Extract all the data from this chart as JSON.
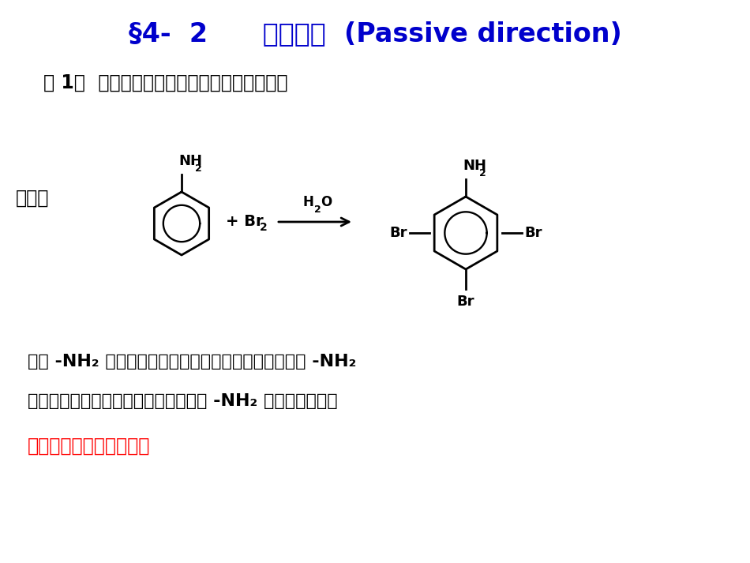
{
  "bg_color": "#FFFFFF",
  "title_color": "#0000CC",
  "text_color_black": "#000000",
  "text_color_red": "#FF0000",
  "title": "§4-  2      钝化导向  (Passive direction)",
  "example_line": "例 1：  设计对溴苯胺和邻溴苯胺的合成路线。",
  "analysis_label": "分析：",
  "body1a": "要使 -NH",
  "body1b": " 的邻位或对位只进入一个溴原子，就需要对 -NH",
  "body2a": "引入一个钝化基团（吸电子基），降低 -NH",
  "body2b": " 的供电子效应。",
  "red_text": "钝化方法：胺基乙酰化。"
}
